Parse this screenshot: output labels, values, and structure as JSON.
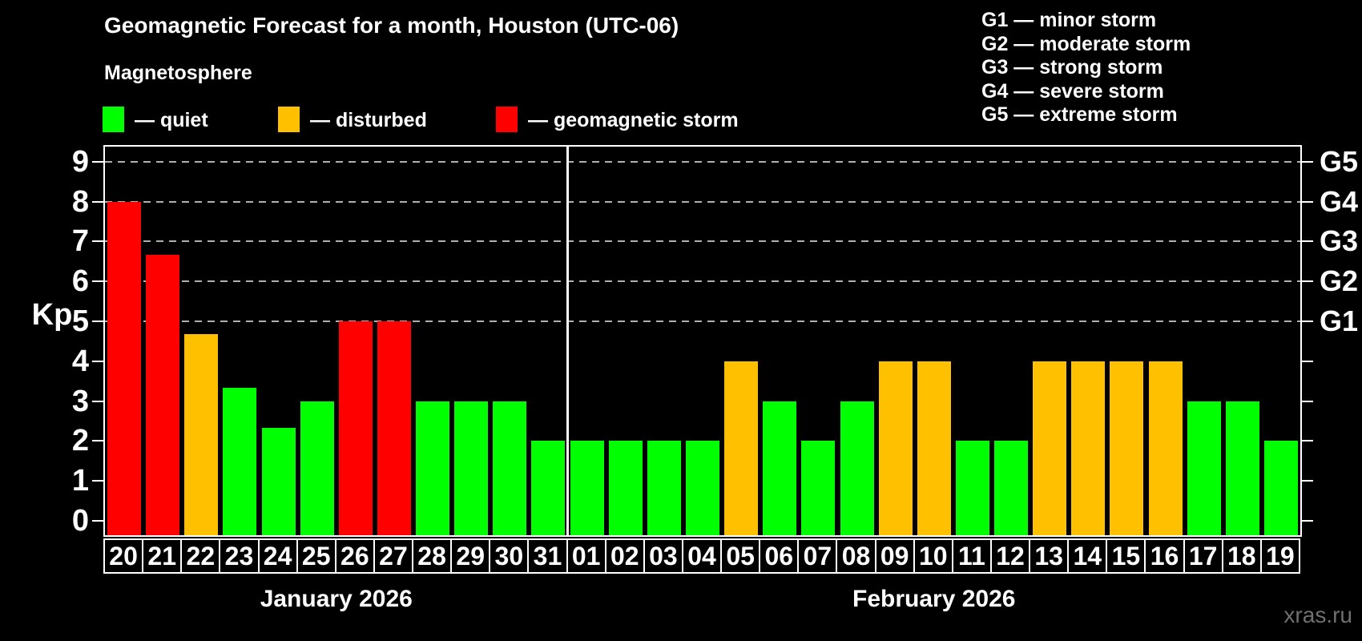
{
  "title": "Geomagnetic Forecast for a month, Houston (UTC-06)",
  "subtitle": "Magnetosphere",
  "legend": {
    "items": [
      {
        "label": "— quiet",
        "color": "#00ff00"
      },
      {
        "label": "— disturbed",
        "color": "#ffc000"
      },
      {
        "label": "— geomagnetic storm",
        "color": "#ff0000"
      }
    ]
  },
  "g_scale_legend": {
    "items": [
      {
        "text": "G1 — minor storm"
      },
      {
        "text": "G2 — moderate storm"
      },
      {
        "text": "G3 — strong storm"
      },
      {
        "text": "G4 — severe storm"
      },
      {
        "text": "G5 — extreme storm"
      }
    ]
  },
  "watermark": "xras.ru",
  "chart_data": {
    "type": "bar",
    "title": "Geomagnetic Forecast for a month, Houston (UTC-06)",
    "ylabel": "Kp",
    "ylim": [
      -0.4,
      9.7
    ],
    "yticks": [
      0,
      1,
      2,
      3,
      4,
      5,
      6,
      7,
      8,
      9
    ],
    "gridline_values": [
      5,
      6,
      7,
      8,
      9
    ],
    "grid": "dashed horizontal at G-storm levels only",
    "legend_position": "top",
    "right_axis_labels": [
      {
        "value": 5,
        "label": "G1"
      },
      {
        "value": 6,
        "label": "G2"
      },
      {
        "value": 7,
        "label": "G3"
      },
      {
        "value": 8,
        "label": "G4"
      },
      {
        "value": 9,
        "label": "G5"
      }
    ],
    "status_colors": {
      "quiet": "#00ff00",
      "disturbed": "#ffc000",
      "storm": "#ff0000"
    },
    "months": [
      {
        "label": "January 2026",
        "count": 12
      },
      {
        "label": "February 2026",
        "count": 19
      }
    ],
    "bars": [
      {
        "day": "20",
        "value": 8.0,
        "status": "storm"
      },
      {
        "day": "21",
        "value": 6.67,
        "status": "storm"
      },
      {
        "day": "22",
        "value": 4.67,
        "status": "disturbed"
      },
      {
        "day": "23",
        "value": 3.33,
        "status": "quiet"
      },
      {
        "day": "24",
        "value": 2.33,
        "status": "quiet"
      },
      {
        "day": "25",
        "value": 3.0,
        "status": "quiet"
      },
      {
        "day": "26",
        "value": 5.0,
        "status": "storm"
      },
      {
        "day": "27",
        "value": 5.0,
        "status": "storm"
      },
      {
        "day": "28",
        "value": 3.0,
        "status": "quiet"
      },
      {
        "day": "29",
        "value": 3.0,
        "status": "quiet"
      },
      {
        "day": "30",
        "value": 3.0,
        "status": "quiet"
      },
      {
        "day": "31",
        "value": 2.0,
        "status": "quiet"
      },
      {
        "day": "01",
        "value": 2.0,
        "status": "quiet"
      },
      {
        "day": "02",
        "value": 2.0,
        "status": "quiet"
      },
      {
        "day": "03",
        "value": 2.0,
        "status": "quiet"
      },
      {
        "day": "04",
        "value": 2.0,
        "status": "quiet"
      },
      {
        "day": "05",
        "value": 4.0,
        "status": "disturbed"
      },
      {
        "day": "06",
        "value": 3.0,
        "status": "quiet"
      },
      {
        "day": "07",
        "value": 2.0,
        "status": "quiet"
      },
      {
        "day": "08",
        "value": 3.0,
        "status": "quiet"
      },
      {
        "day": "09",
        "value": 4.0,
        "status": "disturbed"
      },
      {
        "day": "10",
        "value": 4.0,
        "status": "disturbed"
      },
      {
        "day": "11",
        "value": 2.0,
        "status": "quiet"
      },
      {
        "day": "12",
        "value": 2.0,
        "status": "quiet"
      },
      {
        "day": "13",
        "value": 4.0,
        "status": "disturbed"
      },
      {
        "day": "14",
        "value": 4.0,
        "status": "disturbed"
      },
      {
        "day": "15",
        "value": 4.0,
        "status": "disturbed"
      },
      {
        "day": "16",
        "value": 4.0,
        "status": "disturbed"
      },
      {
        "day": "17",
        "value": 3.0,
        "status": "quiet"
      },
      {
        "day": "18",
        "value": 3.0,
        "status": "quiet"
      },
      {
        "day": "19",
        "value": 2.0,
        "status": "quiet"
      }
    ]
  }
}
